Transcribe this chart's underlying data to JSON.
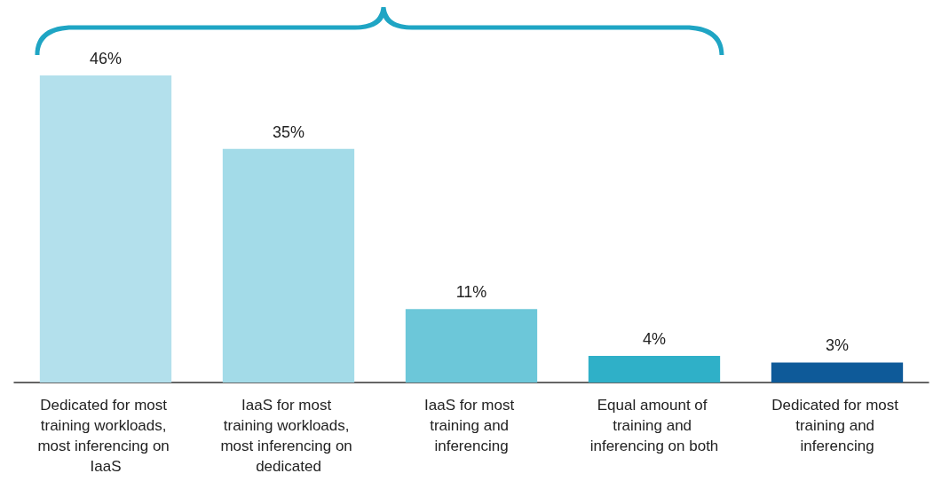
{
  "chart_data": {
    "type": "bar",
    "categories": [
      "Dedicated for most training workloads, most inferencing on IaaS",
      "IaaS for most training workloads, most inferencing on dedicated",
      "IaaS for most training and inferencing",
      "Equal amount of training and inferencing on both",
      "Dedicated for most training and inferencing"
    ],
    "values": [
      46,
      35,
      11,
      4,
      3
    ],
    "value_labels": [
      "46%",
      "35%",
      "11%",
      "4%",
      "3%"
    ],
    "colors": [
      "#b3e0ec",
      "#a3dbe8",
      "#6cc7d9",
      "#2fb0c8",
      "#0e5a99"
    ],
    "grid": false
  }
}
